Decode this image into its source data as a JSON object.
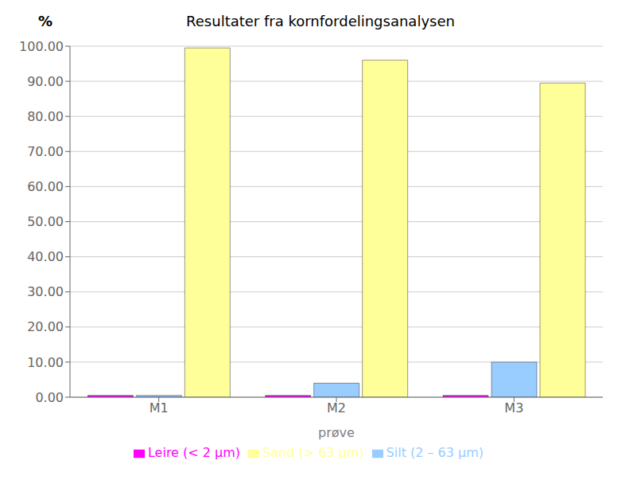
{
  "chart_data": {
    "type": "bar",
    "title": "Resultater fra kornfordelingsanalysen",
    "xlabel": "prøve",
    "ylabel": "%",
    "categories": [
      "M1",
      "M2",
      "M3"
    ],
    "series": [
      {
        "name": "Leire (< 2 μm)",
        "color": "#FF00FF",
        "values": [
          0.5,
          0.5,
          0.5
        ]
      },
      {
        "name": "Silt (2 – 63 μm)",
        "color": "#99CCFF",
        "values": [
          0.5,
          4.0,
          10.0
        ]
      },
      {
        "name": "Sand (> 63 μm)",
        "color": "#FFFF99",
        "values": [
          99.5,
          96.0,
          89.5
        ]
      }
    ],
    "ylim": [
      0,
      100
    ],
    "yticks": [
      {
        "value": 0,
        "label": "0.00"
      },
      {
        "value": 10,
        "label": "10.00"
      },
      {
        "value": 20,
        "label": "20.00"
      },
      {
        "value": 30,
        "label": "30.00"
      },
      {
        "value": 40,
        "label": "40.00"
      },
      {
        "value": 50,
        "label": "50.00"
      },
      {
        "value": 60,
        "label": "60.00"
      },
      {
        "value": 70,
        "label": "70.00"
      },
      {
        "value": 80,
        "label": "80.00"
      },
      {
        "value": 90,
        "label": "90.00"
      },
      {
        "value": 100,
        "label": "100.00"
      }
    ],
    "grid": true,
    "legend": "bottom"
  }
}
